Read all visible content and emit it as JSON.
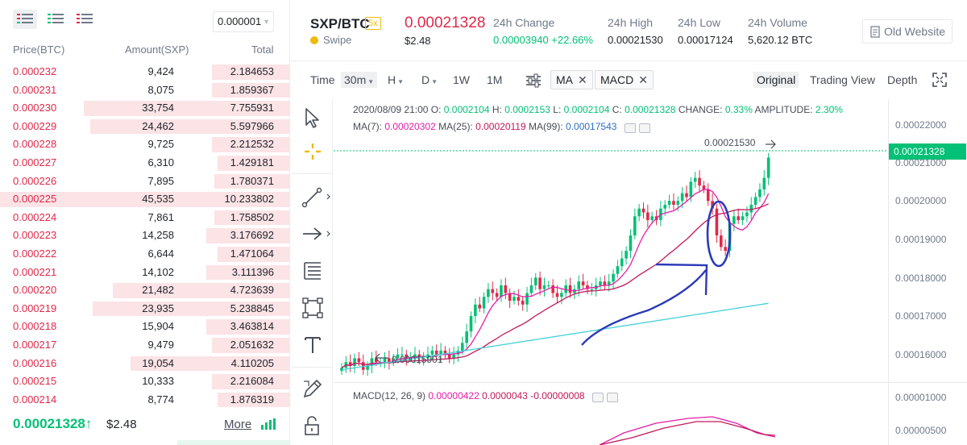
{
  "orderbook": {
    "precision": "0.000001",
    "headers": {
      "price": "Price(BTC)",
      "amount": "Amount(SXP)",
      "total": "Total"
    },
    "asks": [
      {
        "price": "0.000232",
        "amount": "9,424",
        "total": "2.184653",
        "depth": 0.27
      },
      {
        "price": "0.000231",
        "amount": "8,075",
        "total": "1.859367",
        "depth": 0.27
      },
      {
        "price": "0.000230",
        "amount": "33,754",
        "total": "7.755931",
        "depth": 0.71
      },
      {
        "price": "0.000229",
        "amount": "24,462",
        "total": "5.597966",
        "depth": 0.69
      },
      {
        "price": "0.000228",
        "amount": "9,725",
        "total": "2.212532",
        "depth": 0.27
      },
      {
        "price": "0.000227",
        "amount": "6,310",
        "total": "1.429181",
        "depth": 0.25
      },
      {
        "price": "0.000226",
        "amount": "7,895",
        "total": "1.780371",
        "depth": 0.26
      },
      {
        "price": "0.000225",
        "amount": "45,535",
        "total": "10.233802",
        "depth": 1.0
      },
      {
        "price": "0.000224",
        "amount": "7,861",
        "total": "1.758502",
        "depth": 0.26
      },
      {
        "price": "0.000223",
        "amount": "14,258",
        "total": "3.176692",
        "depth": 0.29
      },
      {
        "price": "0.000222",
        "amount": "6,644",
        "total": "1.471064",
        "depth": 0.25
      },
      {
        "price": "0.000221",
        "amount": "14,102",
        "total": "3.111396",
        "depth": 0.29
      },
      {
        "price": "0.000220",
        "amount": "21,482",
        "total": "4.723639",
        "depth": 0.61
      },
      {
        "price": "0.000219",
        "amount": "23,935",
        "total": "5.238845",
        "depth": 0.68
      },
      {
        "price": "0.000218",
        "amount": "15,904",
        "total": "3.463814",
        "depth": 0.29
      },
      {
        "price": "0.000217",
        "amount": "9,479",
        "total": "2.051632",
        "depth": 0.27
      },
      {
        "price": "0.000216",
        "amount": "19,054",
        "total": "4.110205",
        "depth": 0.55
      },
      {
        "price": "0.000215",
        "amount": "10,333",
        "total": "2.216084",
        "depth": 0.27
      },
      {
        "price": "0.000214",
        "amount": "8,774",
        "total": "1.876319",
        "depth": 0.25
      }
    ],
    "last_price": "0.00021328↑",
    "last_usd": "$2.48",
    "more_label": "More"
  },
  "ticker": {
    "symbol": "SXP/BTC",
    "leverage": "5x",
    "name": "Swipe",
    "price": "0.00021328",
    "usd": "$2.48",
    "change_label": "24h Change",
    "change_value": "0.00003940 +22.66%",
    "high_label": "24h High",
    "high_value": "0.00021530",
    "low_label": "24h Low",
    "low_value": "0.00017124",
    "volume_label": "24h Volume",
    "volume_value": "5,620.12 BTC",
    "old_website": "Old Website"
  },
  "toolbar": {
    "time_label": "Time",
    "interval": "30m",
    "h_label": "H",
    "d_label": "D",
    "w_label": "1W",
    "m_label": "1M",
    "ind_ma": "MA",
    "ind_macd": "MACD",
    "view_original": "Original",
    "view_trading": "Trading View",
    "view_depth": "Depth"
  },
  "chart": {
    "ohlc": {
      "date": "2020/08/09 21:00",
      "o_label": "O:",
      "o": "0.0002104",
      "h_label": "H:",
      "h": "0.0002153",
      "l_label": "L:",
      "l": "0.0002104",
      "c_label": "C:",
      "c": "0.00021328",
      "change_label": "CHANGE:",
      "change": "0.33%",
      "amp_label": "AMPLITUDE:",
      "amp": "2.30%"
    },
    "ma": {
      "ma7_label": "MA(7):",
      "ma7": "0.00020302",
      "ma25_label": "MA(25):",
      "ma25": "0.00020119",
      "ma99_label": "MA(99):",
      "ma99": "0.00017543"
    },
    "macd": {
      "label": "MACD(12, 26, 9)",
      "dif": "0.00000422",
      "dea": "0.0000043",
      "hist": "-0.00000008"
    },
    "high_marker": "0.00021530",
    "low_marker": "0.00015901",
    "current_price_tag": "0.00021328",
    "price_ticks": [
      "0.00022000",
      "0.00021000",
      "0.00020000",
      "0.00019000",
      "0.00018000",
      "0.00017000",
      "0.00016000"
    ],
    "macd_ticks": [
      "0.00001000",
      "0.00000500"
    ]
  },
  "chart_data": {
    "type": "candlestick",
    "interval": "30m",
    "last_candle": {
      "time": "2020/08/09 21:00",
      "open": 0.0002104,
      "high": 0.0002153,
      "low": 0.0002104,
      "close": 0.00021328
    },
    "y_range": [
      0.000155,
      0.000222
    ],
    "indicators": [
      "MA(7)",
      "MA(25)",
      "MA(99)",
      "MACD(12, 26, 9)"
    ],
    "colors": {
      "up": "#02c076",
      "down": "#e0294a",
      "ma7": "#e41ea8",
      "ma25": "#c2185b",
      "ma99": "#45d1d9",
      "annotation": "#2b3bb7"
    }
  }
}
